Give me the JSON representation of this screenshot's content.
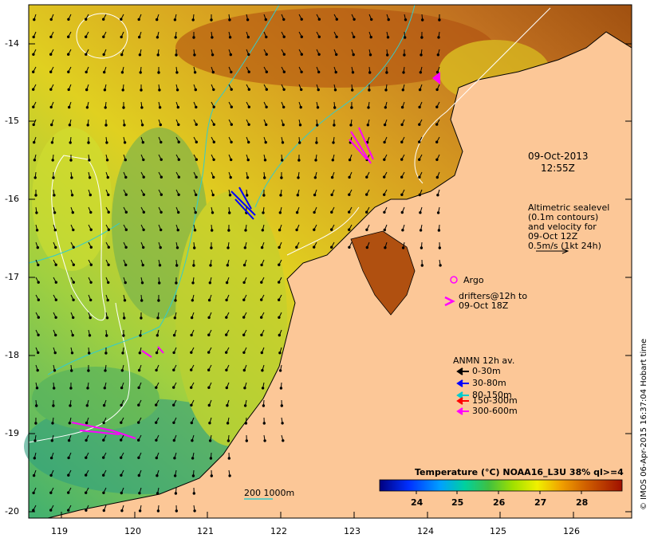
{
  "map": {
    "y_ticks": [
      "-14",
      "-15",
      "-16",
      "-17",
      "-18",
      "-19",
      "-20"
    ],
    "x_ticks": [
      "119",
      "120",
      "121",
      "122",
      "123",
      "124",
      "125",
      "126"
    ],
    "datetime_line1": "09-Oct-2013",
    "datetime_line2": "12:55Z",
    "altimetry_lines": [
      "Altimetric sealevel",
      "(0.1m contours)",
      "and velocity for",
      "09-Oct 12Z",
      "0.5m/s (1kt 24h)"
    ],
    "argo_label": "Argo",
    "drifters_line1": "drifters@12h to",
    "drifters_line2": "09-Oct 18Z",
    "anmn_title": "ANMN 12h av.",
    "anmn_items": [
      {
        "label": "0-30m",
        "color": "#000000"
      },
      {
        "label": "30-80m",
        "color": "#0000ff"
      },
      {
        "label": "80-150m",
        "color": "#00cccc"
      },
      {
        "label": "150-300m",
        "color": "#ff0000"
      },
      {
        "label": "300-600m",
        "color": "#ff00ff"
      }
    ],
    "bathy_label": "200  1000m",
    "colorbar_title": "Temperature (°C) NOAA16_L3U 38% ql>=4",
    "colorbar_ticks": [
      "24",
      "25",
      "26",
      "27",
      "28"
    ],
    "credit": "© IMOS 06-Apr-2015 16:37:04 Hobart time"
  }
}
